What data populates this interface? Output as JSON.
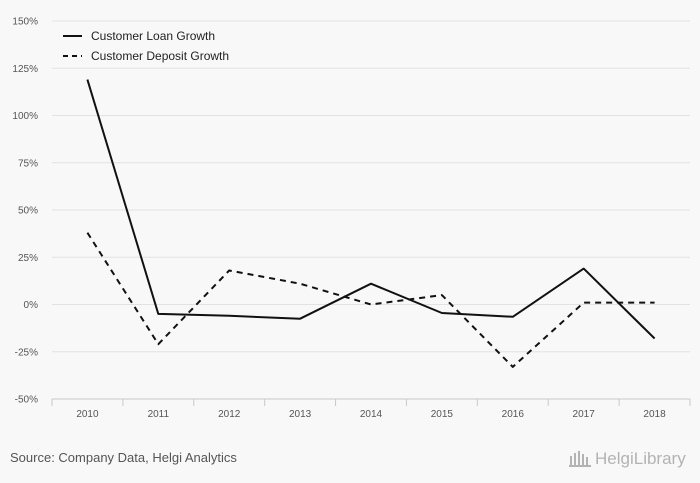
{
  "chart_data": {
    "type": "line",
    "categories": [
      "2010",
      "2011",
      "2012",
      "2013",
      "2014",
      "2015",
      "2016",
      "2017",
      "2018"
    ],
    "series": [
      {
        "name": "Customer Loan Growth",
        "values": [
          119,
          -5,
          -6,
          -7.5,
          11,
          -4.5,
          -6.5,
          19,
          -18
        ],
        "color": "#111111",
        "dash": "solid"
      },
      {
        "name": "Customer Deposit Growth",
        "values": [
          38,
          -21,
          18,
          11,
          0,
          5,
          -33,
          1,
          1
        ],
        "color": "#111111",
        "dash": "dashed"
      }
    ],
    "ylim": [
      -50,
      150
    ],
    "y_ticks": [
      -50,
      -25,
      0,
      25,
      50,
      75,
      100,
      125,
      150
    ],
    "y_tick_labels": [
      "-50%",
      "-25%",
      "0%",
      "25%",
      "50%",
      "75%",
      "100%",
      "125%",
      "150%"
    ],
    "grid": true,
    "legend_position": "top-left"
  },
  "footer": {
    "source": "Source: Company Data, Helgi Analytics"
  },
  "logo": {
    "text": "HelgiLibrary",
    "color": "#b3b3b3"
  }
}
